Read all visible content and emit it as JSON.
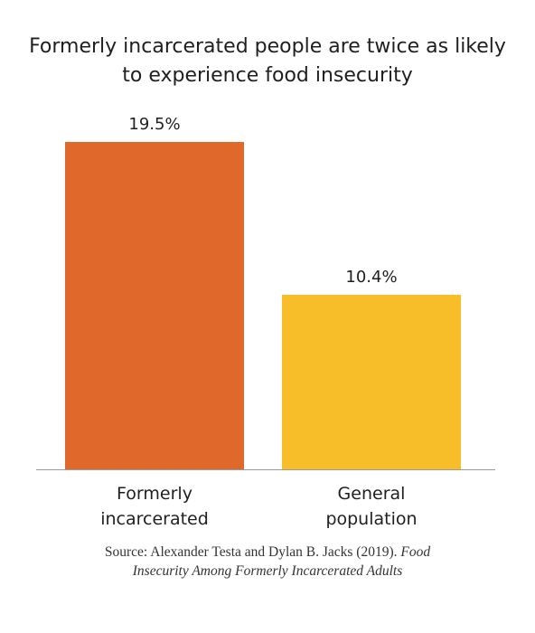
{
  "chart_data": {
    "type": "bar",
    "title": "Formerly incarcerated people are twice as likely to experience food insecurity",
    "title_lines": [
      "Formerly incarcerated people are twice as likely",
      "to experience food insecurity"
    ],
    "categories": [
      "Formerly incarcerated",
      "General population"
    ],
    "category_label_lines": [
      [
        "Formerly",
        "incarcerated"
      ],
      [
        "General",
        "population"
      ]
    ],
    "values": [
      19.5,
      10.4
    ],
    "data_labels": [
      "19.5%",
      "10.4%"
    ],
    "colors": [
      "#E0682B",
      "#F8BE2A"
    ],
    "xlabel": "",
    "ylabel": "",
    "ylim": [
      0,
      19.5
    ],
    "grid": false,
    "legend": "none"
  },
  "source": {
    "prefix": "Source: Alexander Testa and Dylan B. Jacks (2019). ",
    "title_line1": "Food",
    "line2": "Insecurity Among Formerly Incarcerated Adults"
  }
}
